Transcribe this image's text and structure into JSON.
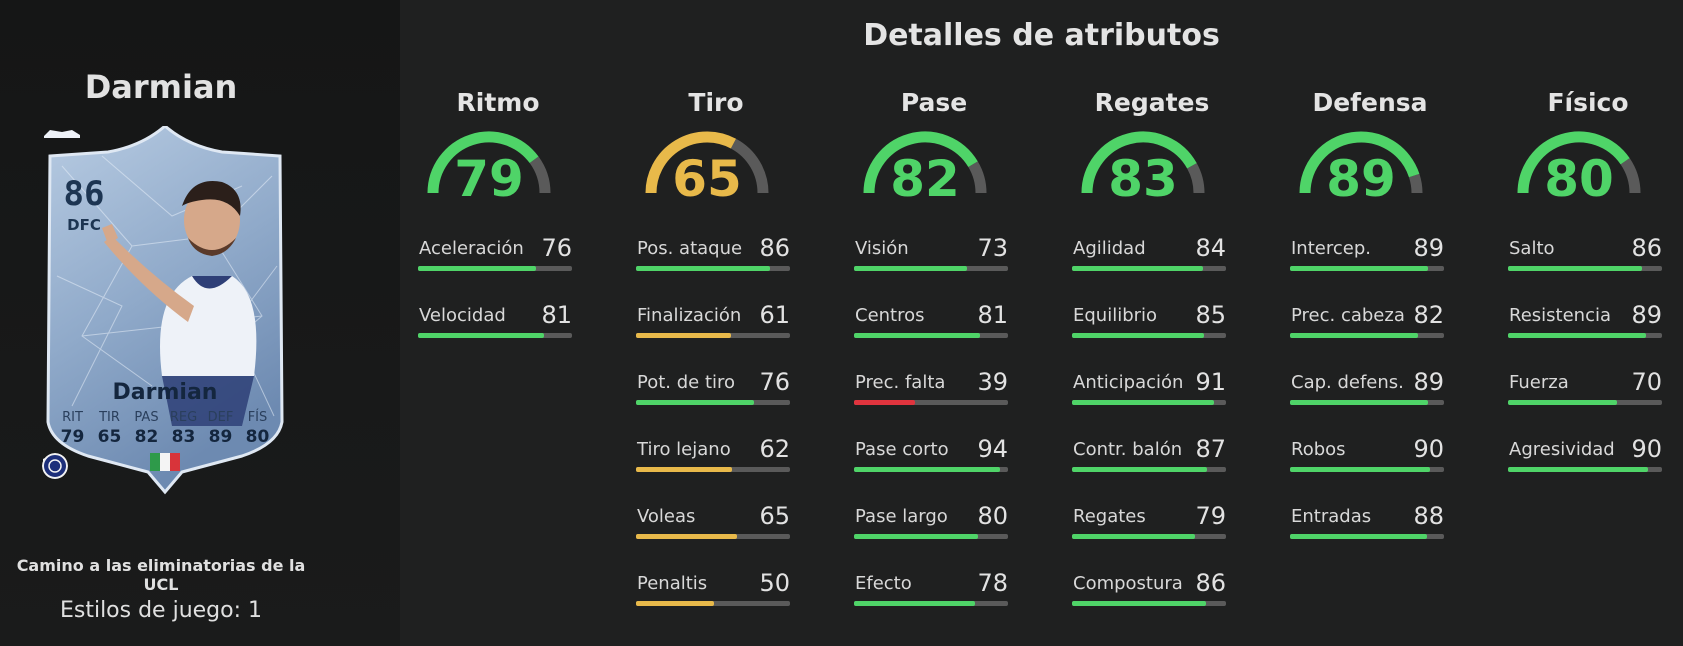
{
  "title": "Detalles de atributos",
  "player": {
    "name": "Darmian",
    "card": {
      "rating": "86",
      "position": "DFC",
      "name": "Darmian",
      "stats": [
        {
          "label": "RIT",
          "value": "79"
        },
        {
          "label": "TIR",
          "value": "65"
        },
        {
          "label": "PAS",
          "value": "82"
        },
        {
          "label": "REG",
          "value": "83"
        },
        {
          "label": "DEF",
          "value": "89"
        },
        {
          "label": "FÍS",
          "value": "80"
        }
      ]
    },
    "event": "Camino a las eliminatorias de la UCL",
    "playstyles": "Estilos de juego: 1"
  },
  "colors": {
    "green": "#4fd468",
    "yellow": "#e8b94a",
    "red": "#e0343e",
    "track": "#5a5a5a"
  },
  "categories": [
    {
      "name": "Ritmo",
      "value": 79,
      "attributes": [
        {
          "name": "Aceleración",
          "value": 76
        },
        {
          "name": "Velocidad",
          "value": 81
        }
      ]
    },
    {
      "name": "Tiro",
      "value": 65,
      "attributes": [
        {
          "name": "Pos. ataque",
          "value": 86
        },
        {
          "name": "Finalización",
          "value": 61
        },
        {
          "name": "Pot. de tiro",
          "value": 76
        },
        {
          "name": "Tiro lejano",
          "value": 62
        },
        {
          "name": "Voleas",
          "value": 65
        },
        {
          "name": "Penaltis",
          "value": 50
        }
      ]
    },
    {
      "name": "Pase",
      "value": 82,
      "attributes": [
        {
          "name": "Visión",
          "value": 73
        },
        {
          "name": "Centros",
          "value": 81
        },
        {
          "name": "Prec. falta",
          "value": 39
        },
        {
          "name": "Pase corto",
          "value": 94
        },
        {
          "name": "Pase largo",
          "value": 80
        },
        {
          "name": "Efecto",
          "value": 78
        }
      ]
    },
    {
      "name": "Regates",
      "value": 83,
      "attributes": [
        {
          "name": "Agilidad",
          "value": 84
        },
        {
          "name": "Equilibrio",
          "value": 85
        },
        {
          "name": "Anticipación",
          "value": 91
        },
        {
          "name": "Contr. balón",
          "value": 87
        },
        {
          "name": "Regates",
          "value": 79
        },
        {
          "name": "Compostura",
          "value": 86
        }
      ]
    },
    {
      "name": "Defensa",
      "value": 89,
      "attributes": [
        {
          "name": "Intercep.",
          "value": 89
        },
        {
          "name": "Prec. cabeza",
          "value": 82
        },
        {
          "name": "Cap. defens.",
          "value": 89
        },
        {
          "name": "Robos",
          "value": 90
        },
        {
          "name": "Entradas",
          "value": 88
        }
      ]
    },
    {
      "name": "Físico",
      "value": 80,
      "attributes": [
        {
          "name": "Salto",
          "value": 86
        },
        {
          "name": "Resistencia",
          "value": 89
        },
        {
          "name": "Fuerza",
          "value": 70
        },
        {
          "name": "Agresividad",
          "value": 90
        }
      ]
    }
  ]
}
